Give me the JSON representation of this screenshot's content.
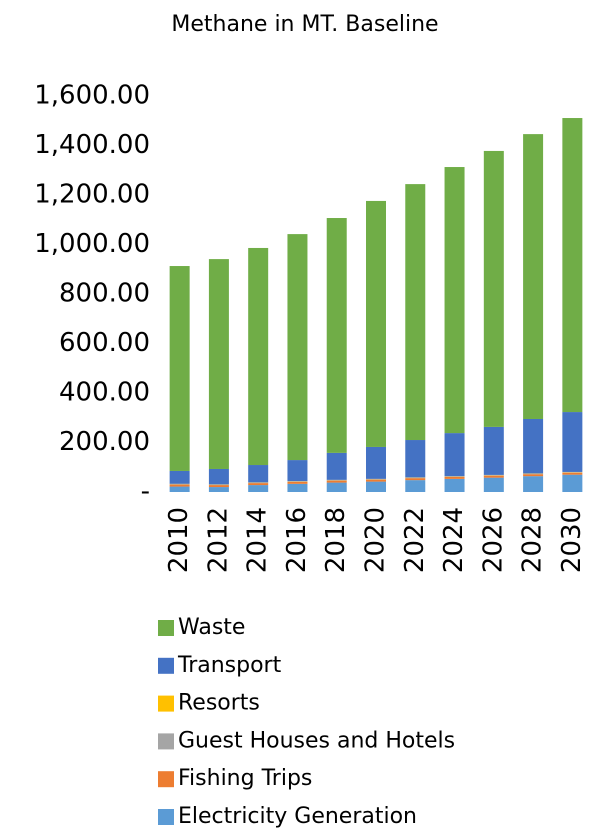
{
  "chart_data": {
    "type": "stacked_bar",
    "title": "Methane in MT. Baseline",
    "categories": [
      "2010",
      "2012",
      "2014",
      "2016",
      "2018",
      "2020",
      "2022",
      "2024",
      "2026",
      "2028",
      "2030"
    ],
    "series": [
      {
        "name": "Electricity Generation",
        "color": "#5b9bd5",
        "values": [
          22,
          20,
          28,
          33,
          38,
          42,
          48,
          53,
          58,
          64,
          70
        ]
      },
      {
        "name": "Fishing Trips",
        "color": "#ed7d31",
        "values": [
          8,
          8,
          8,
          8,
          8,
          8,
          8,
          8,
          8,
          8,
          8
        ]
      },
      {
        "name": "Guest Houses and Hotels",
        "color": "#a5a5a5",
        "values": [
          2,
          2,
          2,
          2,
          2,
          2,
          2,
          2,
          2,
          2,
          2
        ]
      },
      {
        "name": "Resorts",
        "color": "#ffc000",
        "values": [
          1,
          1,
          1,
          1,
          1,
          1,
          1,
          1,
          1,
          1,
          1
        ]
      },
      {
        "name": "Transport",
        "color": "#4472c4",
        "values": [
          52,
          62,
          70,
          85,
          109,
          129,
          151,
          174,
          194,
          220,
          242
        ]
      },
      {
        "name": "Waste",
        "color": "#70ad47",
        "values": [
          828,
          848,
          877,
          913,
          949,
          994,
          1034,
          1075,
          1115,
          1151,
          1188
        ]
      }
    ],
    "ylim": [
      0,
      1600
    ],
    "yticks": [
      {
        "value": 0,
        "label": "-"
      },
      {
        "value": 200,
        "label": "200.00"
      },
      {
        "value": 400,
        "label": "400.00"
      },
      {
        "value": 600,
        "label": "600.00"
      },
      {
        "value": 800,
        "label": "800.00"
      },
      {
        "value": 1000,
        "label": "1,000.00"
      },
      {
        "value": 1200,
        "label": "1,200.00"
      },
      {
        "value": 1400,
        "label": "1,400.00"
      },
      {
        "value": 1600,
        "label": "1,600.00"
      }
    ],
    "grid": false
  }
}
